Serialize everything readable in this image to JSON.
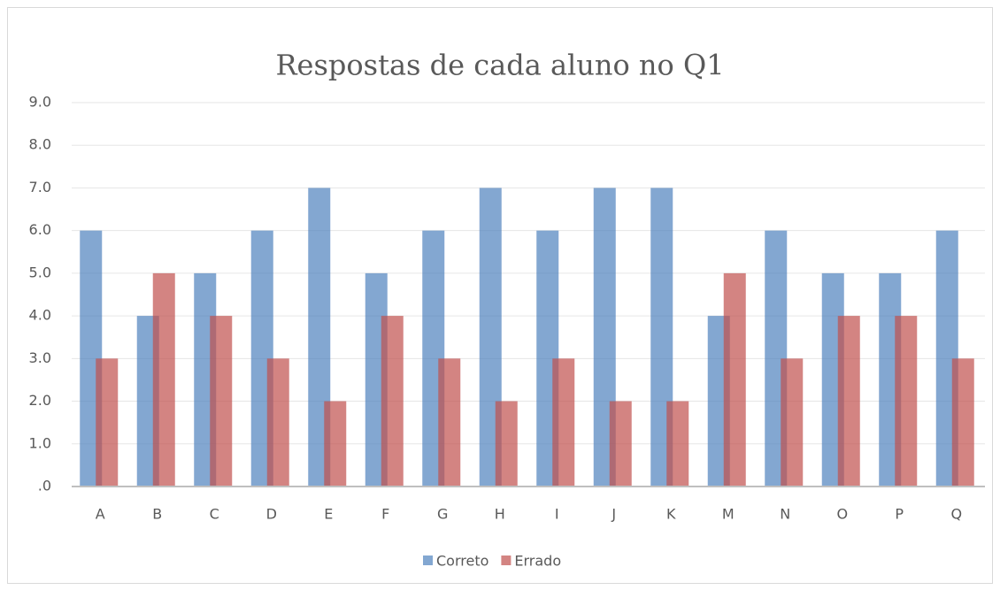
{
  "chart_data": {
    "type": "bar",
    "title": "Respostas de cada aluno no Q1",
    "categories": [
      "A",
      "B",
      "C",
      "D",
      "E",
      "F",
      "G",
      "H",
      "I",
      "J",
      "K",
      "M",
      "N",
      "O",
      "P",
      "Q"
    ],
    "series": [
      {
        "name": "Correto",
        "color": "#4f81bd",
        "values": [
          6,
          4,
          5,
          6,
          7,
          5,
          6,
          7,
          6,
          7,
          7,
          4,
          6,
          5,
          5,
          6
        ]
      },
      {
        "name": "Errado",
        "color": "#c0504d",
        "values": [
          3,
          5,
          4,
          3,
          2,
          4,
          3,
          2,
          3,
          2,
          2,
          5,
          3,
          4,
          4,
          3
        ]
      }
    ],
    "ylim": [
      0,
      9
    ],
    "yticks": [
      {
        "value": 0,
        "label": ".0"
      },
      {
        "value": 1,
        "label": "1.0"
      },
      {
        "value": 2,
        "label": "2.0"
      },
      {
        "value": 3,
        "label": "3.0"
      },
      {
        "value": 4,
        "label": "4.0"
      },
      {
        "value": 5,
        "label": "5.0"
      },
      {
        "value": 6,
        "label": "6.0"
      },
      {
        "value": 7,
        "label": "7.0"
      },
      {
        "value": 8,
        "label": "8.0"
      },
      {
        "value": 9,
        "label": "9.0"
      }
    ],
    "grid": true,
    "legend": "bottom"
  }
}
